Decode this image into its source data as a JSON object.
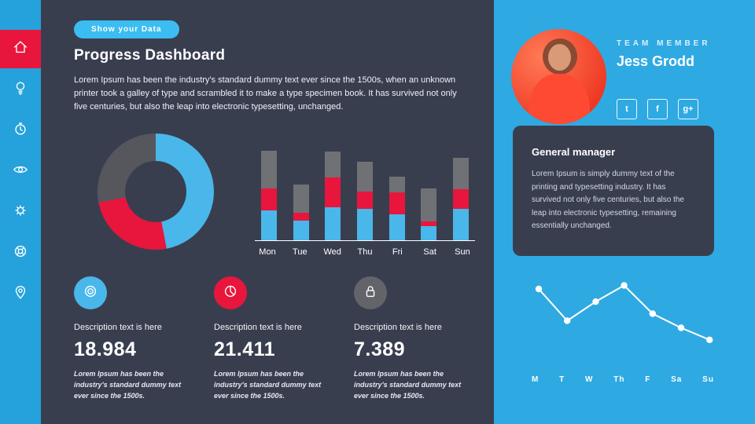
{
  "colors": {
    "background": "#2fa9e2",
    "sidebar": "#25a2db",
    "panel": "#393e4f",
    "accent_blue": "#4ab7ea",
    "accent_red": "#e8163c",
    "accent_gray": "#707175",
    "pill": "#3bbdf2"
  },
  "sidebar": {
    "items": [
      {
        "name": "home",
        "active": true
      },
      {
        "name": "idea",
        "active": false
      },
      {
        "name": "timer",
        "active": false
      },
      {
        "name": "visibility",
        "active": false
      },
      {
        "name": "settings",
        "active": false
      },
      {
        "name": "support",
        "active": false
      },
      {
        "name": "location",
        "active": false
      }
    ]
  },
  "header": {
    "pill_label": "Show your Data",
    "title": "Progress Dashboard",
    "description": "Lorem Ipsum has been the industry's standard dummy text ever since the 1500s, when an unknown printer took a galley of type and scrambled it to make a type specimen book. It has survived not only five centuries, but also the leap into electronic typesetting, unchanged."
  },
  "chart_data": [
    {
      "id": "progress-donut",
      "type": "pie",
      "donut": true,
      "slices": [
        {
          "label": "blue",
          "value": 47,
          "color": "#4ab7ea"
        },
        {
          "label": "red",
          "value": 25,
          "color": "#e8163c"
        },
        {
          "label": "gray",
          "value": 28,
          "color": "#56575d"
        }
      ]
    },
    {
      "id": "weekly-bars",
      "type": "bar",
      "stacked": true,
      "categories": [
        "Mon",
        "Tue",
        "Wed",
        "Thu",
        "Fri",
        "Sat",
        "Sun"
      ],
      "series": [
        {
          "name": "blue",
          "color": "#4ab7ea",
          "values": [
            38,
            25,
            42,
            40,
            33,
            18,
            40
          ]
        },
        {
          "name": "red",
          "color": "#e8163c",
          "values": [
            28,
            10,
            38,
            22,
            28,
            6,
            25
          ]
        },
        {
          "name": "gray",
          "color": "#707175",
          "values": [
            48,
            36,
            33,
            38,
            20,
            42,
            40
          ]
        }
      ],
      "ylim": [
        0,
        118
      ],
      "legend": "none"
    },
    {
      "id": "weekly-trend",
      "type": "line",
      "categories": [
        "M",
        "T",
        "W",
        "Th",
        "F",
        "Sa",
        "Su"
      ],
      "values": [
        80,
        35,
        62,
        85,
        45,
        25,
        8
      ],
      "color": "#ffffff",
      "markers": true
    }
  ],
  "stats": [
    {
      "icon": "target-icon",
      "color": "#4ab7ea",
      "description": "Description text is here",
      "value": "18.984",
      "note": "Lorem Ipsum has been the industry's standard dummy text ever since the 1500s."
    },
    {
      "icon": "pie-icon",
      "color": "#e8163c",
      "description": "Description text is here",
      "value": "21.411",
      "note": "Lorem Ipsum has been the industry's standard dummy text ever since the 1500s."
    },
    {
      "icon": "lock-icon",
      "color": "#63646a",
      "description": "Description text is here",
      "value": "7.389",
      "note": "Lorem Ipsum has been the industry's standard dummy text ever since the 1500s."
    }
  ],
  "team": {
    "label": "TEAM MEMBER",
    "name": "Jess Grodd",
    "role": "General manager",
    "bio": "Lorem Ipsum is simply dummy text of the printing and typesetting industry. It has survived not only five centuries, but also the leap into electronic typesetting, remaining essentially  unchanged.",
    "social": [
      {
        "name": "twitter",
        "glyph": "t"
      },
      {
        "name": "facebook",
        "glyph": "f"
      },
      {
        "name": "google-plus",
        "glyph": "g+"
      }
    ]
  }
}
